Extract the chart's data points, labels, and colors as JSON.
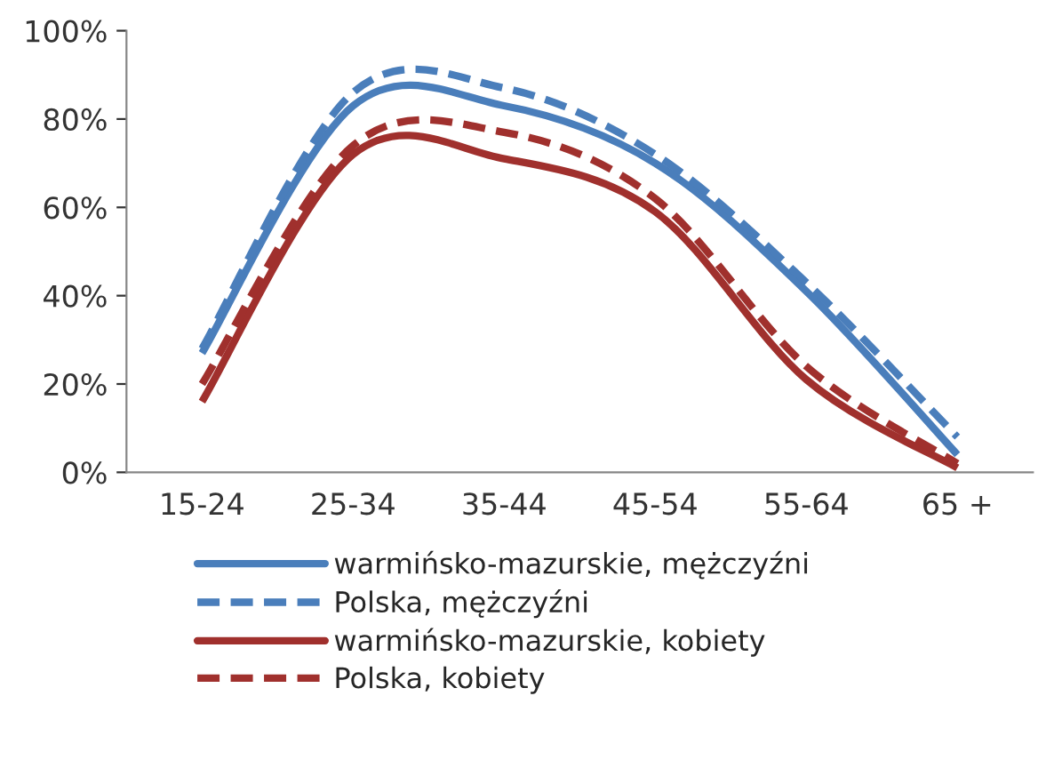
{
  "chart_data": {
    "type": "line",
    "categories": [
      "15-24",
      "25-34",
      "35-44",
      "45-54",
      "55-64",
      "65 +"
    ],
    "series": [
      {
        "name": "warmińsko-mazurskie, mężczyźni",
        "color": "#4a7ebb",
        "line_style": "solid",
        "values": [
          27,
          83,
          83,
          70,
          41,
          4
        ]
      },
      {
        "name": "Polska, mężczyźni",
        "color": "#4a7ebb",
        "line_style": "dashed",
        "values": [
          28,
          86,
          87,
          72,
          43,
          8
        ]
      },
      {
        "name": "warmińsko-mazurskie, kobiety",
        "color": "#a0302d",
        "line_style": "solid",
        "values": [
          16,
          72,
          71,
          59,
          21,
          1
        ]
      },
      {
        "name": "Polska, kobiety",
        "color": "#a0302d",
        "line_style": "dashed",
        "values": [
          20,
          74,
          77,
          62,
          24,
          2
        ]
      }
    ],
    "ylim": [
      0,
      100
    ],
    "yticks": [
      {
        "value": 0,
        "label": "0%"
      },
      {
        "value": 20,
        "label": "20%"
      },
      {
        "value": 40,
        "label": "40%"
      },
      {
        "value": 60,
        "label": "60%"
      },
      {
        "value": 80,
        "label": "80%"
      },
      {
        "value": 100,
        "label": "100%"
      }
    ],
    "grid": false,
    "legend": "bottom",
    "marker": "none"
  }
}
